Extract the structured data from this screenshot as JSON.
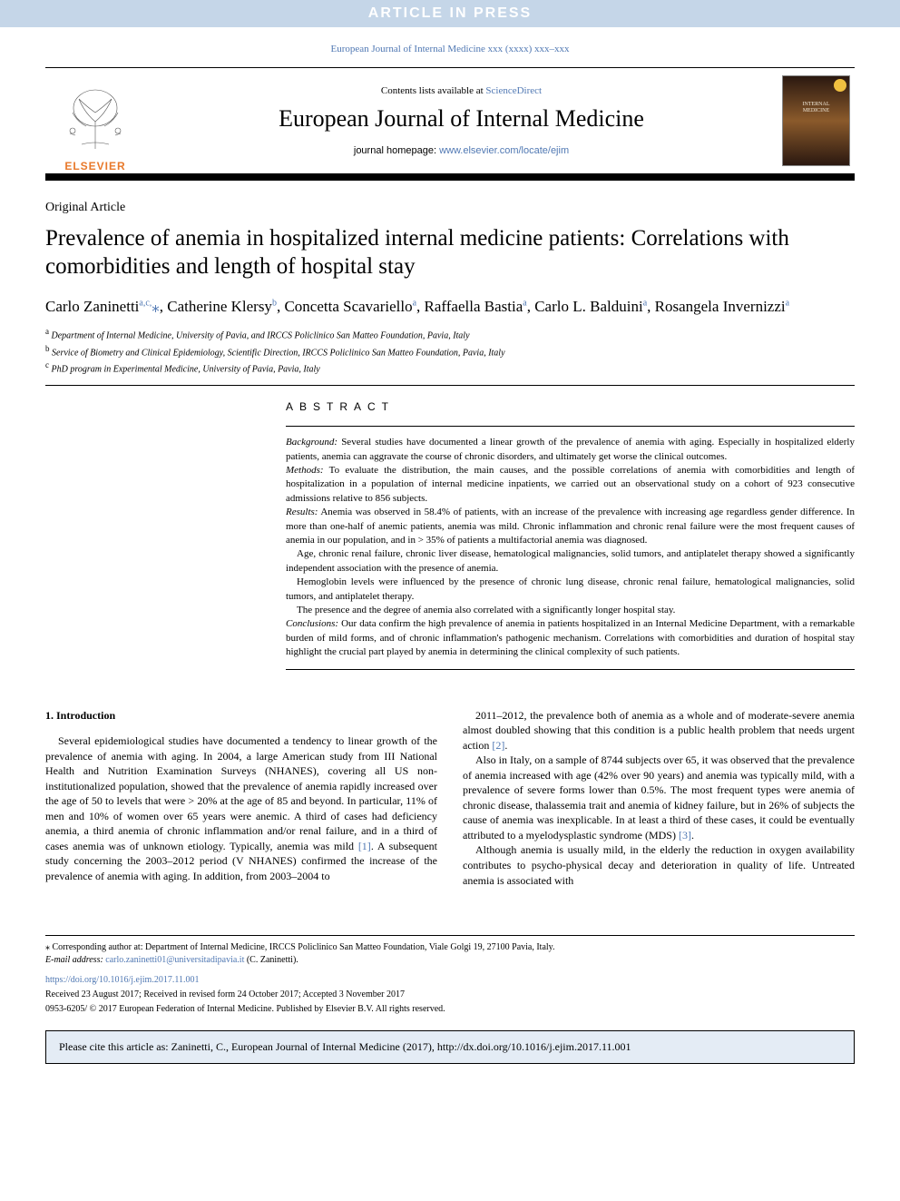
{
  "banner": {
    "text": "ARTICLE IN PRESS",
    "bg_color": "#c5d6e8",
    "text_color": "#ffffff"
  },
  "journal_ref": "European Journal of Internal Medicine xxx (xxxx) xxx–xxx",
  "header": {
    "contents_prefix": "Contents lists available at ",
    "contents_link": "ScienceDirect",
    "journal_name": "European Journal of Internal Medicine",
    "homepage_prefix": "journal homepage: ",
    "homepage_link": "www.elsevier.com/locate/ejim",
    "publisher_label": "ELSEVIER",
    "cover_title_1": "INTERNAL",
    "cover_title_2": "MEDICINE"
  },
  "article": {
    "type": "Original Article",
    "title": "Prevalence of anemia in hospitalized internal medicine patients: Correlations with comorbidities and length of hospital stay",
    "authors_html": "Carlo Zaninetti<sup>a,c,</sup><span class='corr'>⁎</span>, Catherine Klersy<sup>b</sup>, Concetta Scavariello<sup>a</sup>, Raffaella Bastia<sup>a</sup>, Carlo L. Balduini<sup>a</sup>, Rosangela Invernizzi<sup>a</sup>",
    "affiliations": [
      {
        "key": "a",
        "text": "Department of Internal Medicine, University of Pavia, and IRCCS Policlinico San Matteo Foundation, Pavia, Italy"
      },
      {
        "key": "b",
        "text": "Service of Biometry and Clinical Epidemiology, Scientific Direction, IRCCS Policlinico San Matteo Foundation, Pavia, Italy"
      },
      {
        "key": "c",
        "text": "PhD program in Experimental Medicine, University of Pavia, Pavia, Italy"
      }
    ]
  },
  "abstract": {
    "heading": "ABSTRACT",
    "paragraphs": [
      {
        "label": "Background:",
        "text": " Several studies have documented a linear growth of the prevalence of anemia with aging. Especially in hospitalized elderly patients, anemia can aggravate the course of chronic disorders, and ultimately get worse the clinical outcomes.",
        "indent": false
      },
      {
        "label": "Methods:",
        "text": " To evaluate the distribution, the main causes, and the possible correlations of anemia with comorbidities and length of hospitalization in a population of internal medicine inpatients, we carried out an observational study on a cohort of 923 consecutive admissions relative to 856 subjects.",
        "indent": false
      },
      {
        "label": "Results:",
        "text": " Anemia was observed in 58.4% of patients, with an increase of the prevalence with increasing age regardless gender difference. In more than one-half of anemic patients, anemia was mild. Chronic inflammation and chronic renal failure were the most frequent causes of anemia in our population, and in > 35% of patients a multifactorial anemia was diagnosed.",
        "indent": false
      },
      {
        "label": "",
        "text": "Age, chronic renal failure, chronic liver disease, hematological malignancies, solid tumors, and antiplatelet therapy showed a significantly independent association with the presence of anemia.",
        "indent": true
      },
      {
        "label": "",
        "text": "Hemoglobin levels were influenced by the presence of chronic lung disease, chronic renal failure, hematological malignancies, solid tumors, and antiplatelet therapy.",
        "indent": true
      },
      {
        "label": "",
        "text": "The presence and the degree of anemia also correlated with a significantly longer hospital stay.",
        "indent": true
      },
      {
        "label": "Conclusions:",
        "text": " Our data confirm the high prevalence of anemia in patients hospitalized in an Internal Medicine Department, with a remarkable burden of mild forms, and of chronic inflammation's pathogenic mechanism. Correlations with comorbidities and duration of hospital stay highlight the crucial part played by anemia in determining the clinical complexity of such patients.",
        "indent": false
      }
    ]
  },
  "body": {
    "section_number": "1.",
    "section_title": "Introduction",
    "col1": [
      "Several epidemiological studies have documented a tendency to linear growth of the prevalence of anemia with aging. In 2004, a large American study from III National Health and Nutrition Examination Surveys (NHANES), covering all US non-institutionalized population, showed that the prevalence of anemia rapidly increased over the age of 50 to levels that were > 20% at the age of 85 and beyond. In particular, 11% of men and 10% of women over 65 years were anemic. A third of cases had deficiency anemia, a third anemia of chronic inflammation and/or renal failure, and in a third of cases anemia was of unknown etiology. Typically, anemia was mild [1]. A subsequent study concerning the 2003–2012 period (V NHANES) confirmed the increase of the prevalence of anemia with aging. In addition, from 2003–2004 to"
    ],
    "col2": [
      "2011–2012, the prevalence both of anemia as a whole and of moderate-severe anemia almost doubled showing that this condition is a public health problem that needs urgent action [2].",
      "Also in Italy, on a sample of 8744 subjects over 65, it was observed that the prevalence of anemia increased with age (42% over 90 years) and anemia was typically mild, with a prevalence of severe forms lower than 0.5%. The most frequent types were anemia of chronic disease, thalassemia trait and anemia of kidney failure, but in 26% of subjects the cause of anemia was inexplicable. In at least a third of these cases, it could be eventually attributed to a myelodysplastic syndrome (MDS) [3].",
      "Although anemia is usually mild, in the elderly the reduction in oxygen availability contributes to psycho-physical decay and deterioration in quality of life. Untreated anemia is associated with"
    ],
    "refs": {
      "r1": "[1]",
      "r2": "[2]",
      "r3": "[3]"
    }
  },
  "footer": {
    "corr_text": "⁎ Corresponding author at: Department of Internal Medicine, IRCCS Policlinico San Matteo Foundation, Viale Golgi 19, 27100 Pavia, Italy.",
    "email_label": "E-mail address:",
    "email": "carlo.zaninetti01@universitadipavia.it",
    "email_name": " (C. Zaninetti).",
    "doi": "https://doi.org/10.1016/j.ejim.2017.11.001",
    "received": "Received 23 August 2017; Received in revised form 24 October 2017; Accepted 3 November 2017",
    "copyright": "0953-6205/ © 2017 European Federation of Internal Medicine. Published by Elsevier B.V. All rights reserved."
  },
  "cite_box": "Please cite this article as: Zaninetti, C., European Journal of Internal Medicine (2017), http://dx.doi.org/10.1016/j.ejim.2017.11.001",
  "colors": {
    "link": "#5078b3",
    "banner_bg": "#c5d6e8",
    "cite_bg": "#e4ecf5",
    "elsevier_orange": "#e8792b"
  }
}
